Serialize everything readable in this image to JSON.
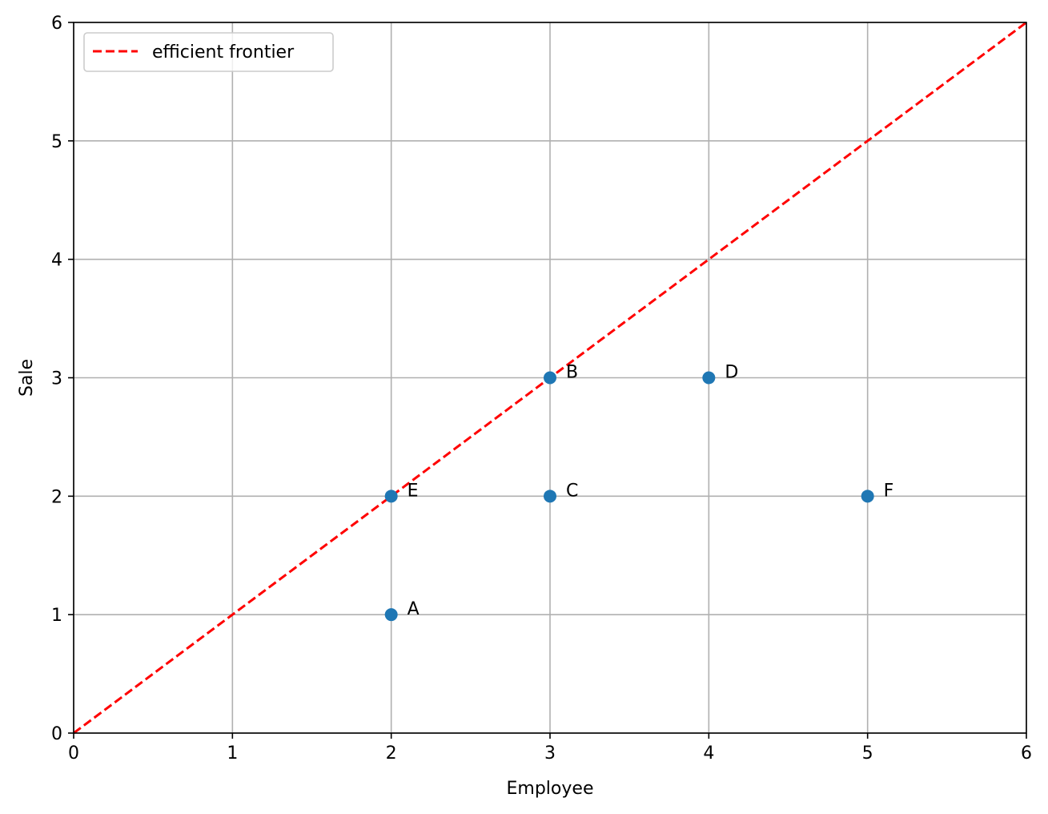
{
  "chart_data": {
    "type": "scatter",
    "title": "",
    "xlabel": "Employee",
    "ylabel": "Sale",
    "xlim": [
      0,
      6
    ],
    "ylim": [
      0,
      6
    ],
    "xticks": [
      "0",
      "1",
      "2",
      "3",
      "4",
      "5",
      "6"
    ],
    "yticks": [
      "0",
      "1",
      "2",
      "3",
      "4",
      "5",
      "6"
    ],
    "grid": true,
    "legend_position": "top-left",
    "points": [
      {
        "label": "A",
        "x": 2,
        "y": 1
      },
      {
        "label": "B",
        "x": 3,
        "y": 3
      },
      {
        "label": "C",
        "x": 3,
        "y": 2
      },
      {
        "label": "D",
        "x": 4,
        "y": 3
      },
      {
        "label": "E",
        "x": 2,
        "y": 2
      },
      {
        "label": "F",
        "x": 5,
        "y": 2
      }
    ],
    "point_color": "#1f77b4",
    "lines": [
      {
        "name": "efficient frontier",
        "style": "dashed",
        "color": "#ff0000",
        "x": [
          0,
          6
        ],
        "y": [
          0,
          6
        ]
      }
    ]
  }
}
